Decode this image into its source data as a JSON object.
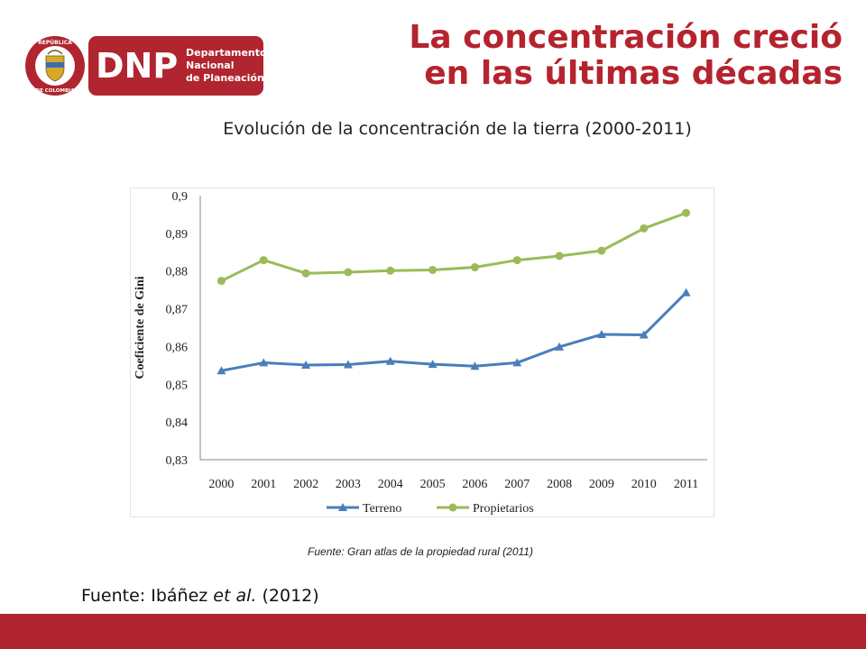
{
  "header": {
    "title_line1": "La concentración creció",
    "title_line2": "en las últimas décadas",
    "logo": {
      "emblem_text_top": "REPÚBLICA",
      "emblem_text_bottom": "DE COLOMBIA",
      "brand": "DNP",
      "name_line1": "Departamento",
      "name_line2": "Nacional",
      "name_line3": "de Planeación"
    }
  },
  "chart_heading": "Evolución de la concentración de la tierra (2000-2011)",
  "chart_data": {
    "type": "line",
    "title": "",
    "xlabel": "",
    "ylabel": "Coeficiente de Gini",
    "categories": [
      "2000",
      "2001",
      "2002",
      "2003",
      "2004",
      "2005",
      "2006",
      "2007",
      "2008",
      "2009",
      "2010",
      "2011"
    ],
    "ylim": [
      0.83,
      0.9
    ],
    "y_ticks": [
      0.83,
      0.84,
      0.85,
      0.86,
      0.87,
      0.88,
      0.89,
      0.9
    ],
    "y_tick_labels": [
      "0,83",
      "0,84",
      "0,85",
      "0,86",
      "0,87",
      "0,88",
      "0,89",
      "0,9"
    ],
    "grid": false,
    "legend_position": "bottom",
    "series": [
      {
        "name": "Terreno",
        "marker": "triangle",
        "color": "#4a7ebb",
        "values": [
          0.8536,
          0.8557,
          0.8551,
          0.8552,
          0.8561,
          0.8553,
          0.8548,
          0.8557,
          0.8599,
          0.8632,
          0.8631,
          0.8743
        ]
      },
      {
        "name": "Propietarios",
        "marker": "circle",
        "color": "#9bbb59",
        "values": [
          0.8774,
          0.8829,
          0.8794,
          0.8797,
          0.8801,
          0.8803,
          0.881,
          0.8829,
          0.884,
          0.8854,
          0.8913,
          0.8954
        ]
      }
    ]
  },
  "chart_caption": "Fuente: Gran atlas de la propiedad rural (2011)",
  "source": {
    "prefix": "Fuente: Ibáñez ",
    "italic": "et al.",
    "suffix": " (2012)"
  },
  "colors": {
    "accent": "#b0252f",
    "title": "#b5232e"
  }
}
